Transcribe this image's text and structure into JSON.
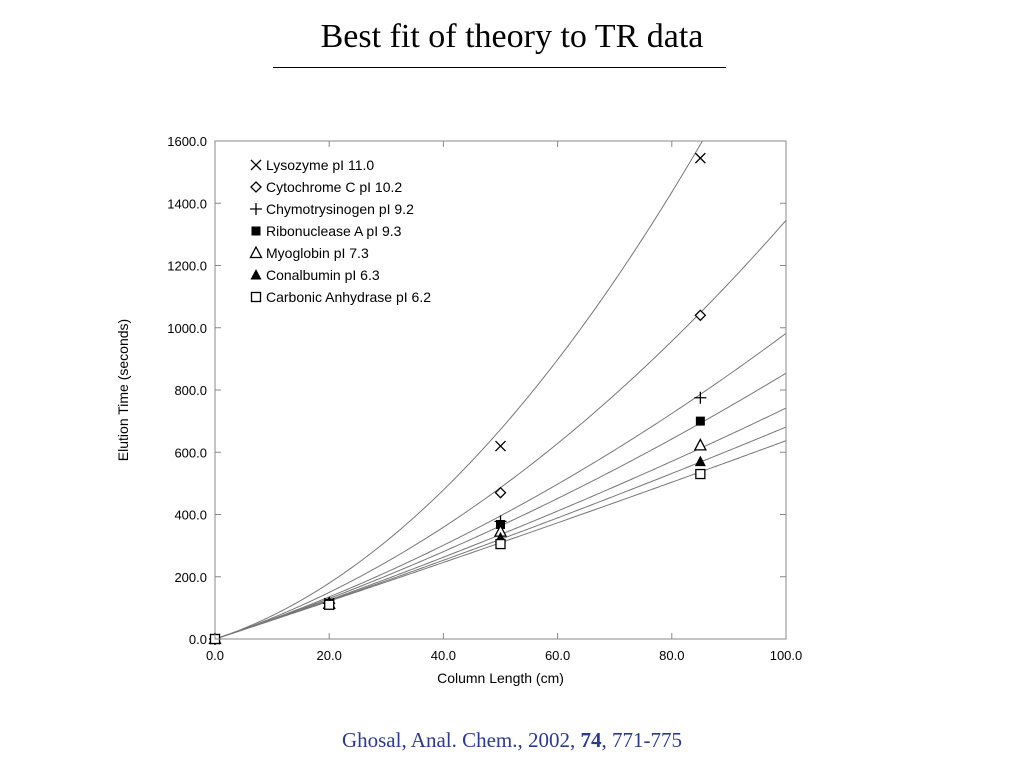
{
  "slide": {
    "title": "Best fit of theory to TR data"
  },
  "citation": {
    "text_before": "Ghosal, Anal. Chem., 2002, ",
    "volume": "74",
    "text_after": ", 771-775"
  },
  "chart_data": {
    "type": "scatter",
    "xlabel": "Column Length (cm)",
    "ylabel": "Elution Time (seconds)",
    "xlim": [
      0,
      100
    ],
    "ylim": [
      0,
      1600
    ],
    "xticks": [
      "0.0",
      "20.0",
      "40.0",
      "60.0",
      "80.0",
      "100.0"
    ],
    "yticks": [
      "0.0",
      "200.0",
      "400.0",
      "600.0",
      "800.0",
      "1000.0",
      "1200.0",
      "1400.0",
      "1600.0"
    ],
    "grid": false,
    "legend_position": "top-left",
    "series": [
      {
        "name": "Lysozyme pI 11.0",
        "marker": "x",
        "x": [
          0,
          20,
          50,
          85
        ],
        "y": [
          0,
          115,
          620,
          1545
        ],
        "fit_linear": 6.0,
        "fit_quadratic": 0.1493
      },
      {
        "name": "Cytochrome C pI 10.2",
        "marker": "diamond-open",
        "x": [
          0,
          20,
          50,
          85
        ],
        "y": [
          0,
          115,
          470,
          1040
        ],
        "fit_linear": 6.0,
        "fit_quadratic": 0.0745
      },
      {
        "name": "Chymotrysinogen pI 9.2",
        "marker": "plus",
        "x": [
          0,
          20,
          50,
          85
        ],
        "y": [
          0,
          115,
          378,
          775
        ],
        "fit_linear": 6.0,
        "fit_quadratic": 0.0382
      },
      {
        "name": "Ribonuclease A pI 9.3",
        "marker": "square-filled",
        "x": [
          0,
          20,
          50,
          85
        ],
        "y": [
          0,
          115,
          368,
          700
        ],
        "fit_linear": 6.0,
        "fit_quadratic": 0.0254
      },
      {
        "name": "Myoglobin pI 7.3",
        "marker": "triangle-open",
        "x": [
          0,
          20,
          50,
          85
        ],
        "y": [
          0,
          113,
          345,
          622
        ],
        "fit_linear": 6.0,
        "fit_quadratic": 0.0142
      },
      {
        "name": "Conalbumin pI 6.3",
        "marker": "triangle-filled",
        "x": [
          0,
          20,
          50,
          85
        ],
        "y": [
          0,
          112,
          325,
          570
        ],
        "fit_linear": 6.0,
        "fit_quadratic": 0.0081
      },
      {
        "name": "Carbonic Anhydrase pI 6.2",
        "marker": "square-open",
        "x": [
          0,
          20,
          50,
          85
        ],
        "y": [
          0,
          110,
          305,
          530
        ],
        "fit_linear": 6.0,
        "fit_quadratic": 0.0037
      }
    ]
  }
}
